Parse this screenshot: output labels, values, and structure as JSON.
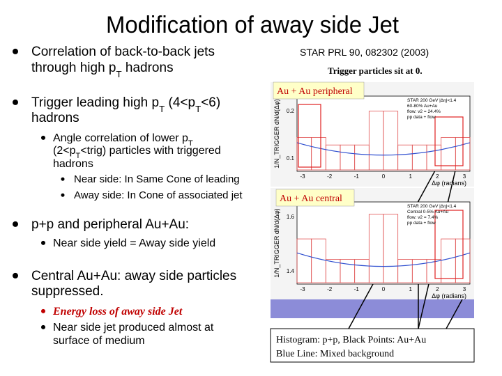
{
  "title": "Modification of away side Jet",
  "reference": "STAR PRL 90, 082302 (2003)",
  "note": "Trigger particles sit at 0.",
  "bullets": [
    {
      "lines": [
        [
          "Correlation of back-to-back jets"
        ],
        [
          "through high p",
          "T",
          " hadrons"
        ]
      ]
    },
    {
      "lines": [
        [
          "Trigger leading high p",
          "T",
          " (4<p",
          "T",
          "<6)"
        ],
        [
          "hadrons"
        ]
      ],
      "children": [
        {
          "lines": [
            [
              "Angle correlation of lower p",
              "T"
            ],
            [
              "(2<p",
              "T",
              "<trig) particles with triggered"
            ],
            [
              "hadrons"
            ]
          ],
          "children": [
            {
              "lines": [
                [
                  "Near side:  In Same Cone of leading"
                ]
              ]
            },
            {
              "lines": [
                [
                  "Away side: In Cone of associated jet"
                ]
              ]
            }
          ]
        }
      ]
    },
    {
      "lines": [
        [
          "p+p and peripheral Au+Au:"
        ]
      ],
      "children": [
        {
          "lines": [
            [
              "Near side yield = Away side yield"
            ]
          ]
        }
      ]
    },
    {
      "lines": [
        [
          "Central Au+Au: away side particles"
        ],
        [
          "suppressed."
        ]
      ],
      "children": [
        {
          "lines": [
            [
              "Energy loss of away side Jet"
            ]
          ]
        },
        {
          "lines": [
            [
              "Near side jet produced almost at"
            ],
            [
              "surface of medium"
            ]
          ]
        }
      ]
    }
  ],
  "panels": [
    {
      "label": "Au + Au peripheral",
      "legend": [
        "STAR 200 GeV |Δη|<1.4",
        "60-80% Au+Au",
        "flow: v2 = 24.4%",
        "pp data + flow"
      ],
      "y_axis_label": "1/N_TRIGGER dN/d(Δφ)",
      "yticks": [
        "0.2",
        "0.1"
      ],
      "xticks": [
        "-3",
        "-2",
        "-1",
        "0",
        "1",
        "2",
        "3"
      ],
      "x_axis_label": "Δφ (radians)"
    },
    {
      "label": "Au + Au central",
      "legend": [
        "STAR 200 GeV |Δη|<1.4",
        "Central 0-5% Au+Au",
        "flow: v2 = 7.4%",
        "pp data + flow"
      ],
      "y_axis_label": "1/N_TRIGGER dN/d(Δφ)",
      "yticks": [
        "1.6",
        "1.4"
      ],
      "xticks": [
        "-3",
        "-2",
        "-1",
        "0",
        "1",
        "2",
        "3"
      ],
      "x_axis_label": "Δφ (radians)"
    }
  ],
  "caption": [
    "Histogram: p+p, Black Points: Au+Au",
    "Blue Line: Mixed background"
  ]
}
